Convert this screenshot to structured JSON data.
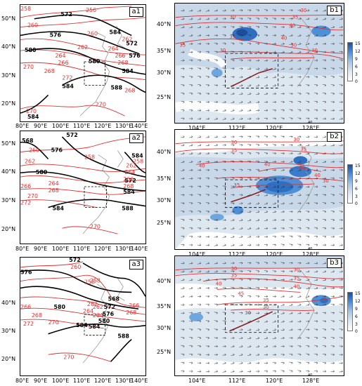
{
  "panels": {
    "a1": {
      "label": "a1"
    },
    "a2": {
      "label": "a2"
    },
    "a3": {
      "label": "a3"
    },
    "b1": {
      "label": "b1"
    },
    "b2": {
      "label": "b2"
    },
    "b3": {
      "label": "b3"
    }
  },
  "left_axes": {
    "lat_ticks": [
      "50°N",
      "40°N",
      "30°N",
      "20°N"
    ],
    "lon_ticks": [
      "80°E",
      "90°E",
      "100°E",
      "110°E",
      "120°E",
      "130°E",
      "140°E"
    ]
  },
  "right_axes": {
    "lat_ticks": [
      "40°N",
      "35°N",
      "30°N",
      "25°N"
    ],
    "lon_ticks": [
      "104°E",
      "112°E",
      "120°E",
      "128°E"
    ]
  },
  "colorbar": {
    "ticks": [
      "15",
      "12",
      "9",
      "6",
      "3",
      "0"
    ]
  },
  "vector_scale": {
    "label": "40"
  },
  "contour_labels": {
    "a1": {
      "black": [
        "572",
        "576",
        "584",
        "580",
        "572",
        "576",
        "580",
        "584",
        "584",
        "588",
        "584"
      ],
      "red": [
        "258",
        "256",
        "260",
        "260",
        "262",
        "264",
        "266",
        "268",
        "264",
        "266",
        "268",
        "262",
        "270",
        "272",
        "268",
        "270",
        "270"
      ]
    },
    "a2": {
      "black": [
        "568",
        "572",
        "576",
        "580",
        "584",
        "572",
        "584",
        "588",
        "584"
      ],
      "red": [
        "258",
        "260",
        "262",
        "264",
        "266",
        "268",
        "270",
        "272",
        "270",
        "262",
        "264",
        "266",
        "268",
        "258"
      ]
    },
    "a3": {
      "black": [
        "572",
        "576",
        "580",
        "584",
        "568",
        "572",
        "576",
        "580",
        "588",
        "584"
      ],
      "red": [
        "258",
        "260",
        "262",
        "264",
        "266",
        "268",
        "270",
        "272",
        "266",
        "262",
        "264",
        "258",
        "270",
        "268"
      ]
    },
    "b1": {
      "red": [
        "30",
        "35",
        "30",
        "40",
        "35",
        "40",
        "30",
        "35",
        "30",
        "30"
      ]
    },
    "b2": {
      "red": [
        "30",
        "35",
        "40",
        "45",
        "30",
        "35",
        "40",
        "40",
        "35",
        "30"
      ]
    },
    "b3": {
      "red": [
        "30",
        "35",
        "40",
        "45",
        "30",
        "35",
        "40",
        "35",
        "30",
        "30"
      ]
    }
  }
}
